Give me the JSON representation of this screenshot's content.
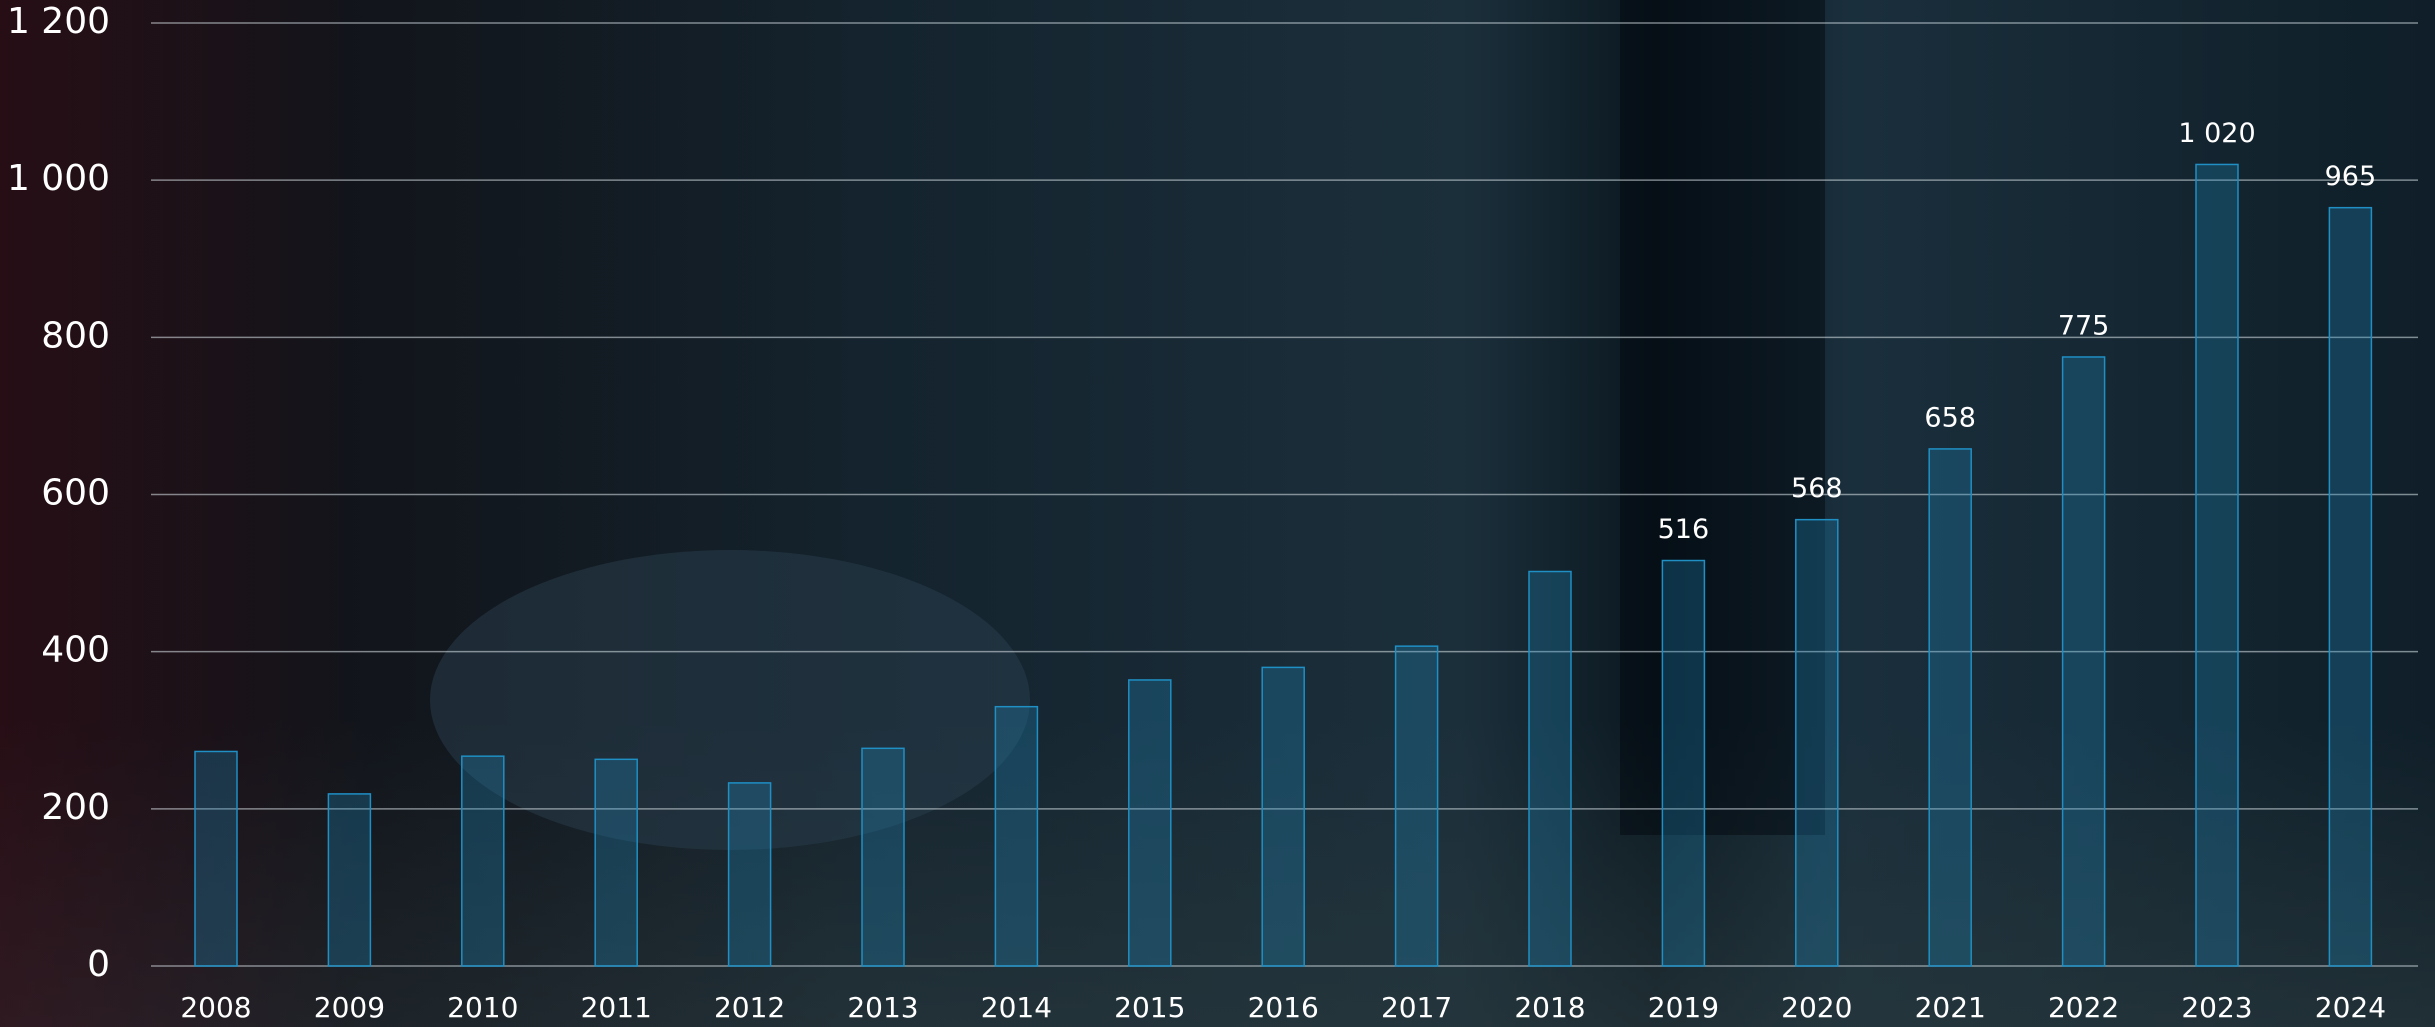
{
  "chart_data": {
    "type": "bar",
    "categories": [
      "2008",
      "2009",
      "2010",
      "2011",
      "2012",
      "2013",
      "2014",
      "2015",
      "2016",
      "2017",
      "2018",
      "2019",
      "2020",
      "2021",
      "2022",
      "2023",
      "2024"
    ],
    "values": [
      273,
      219,
      267,
      263,
      233,
      277,
      330,
      364,
      380,
      407,
      502,
      516,
      568,
      658,
      775,
      1020,
      965
    ],
    "value_labels": [
      null,
      null,
      null,
      null,
      null,
      null,
      null,
      null,
      null,
      null,
      null,
      "516",
      "568",
      "658",
      "775",
      "1 020",
      "965"
    ],
    "color": "#1f8fc4",
    "ylim": [
      0,
      1200
    ],
    "yticks": [
      0,
      200,
      400,
      600,
      800,
      {
        "value": 1000,
        "label": "1 000"
      },
      {
        "value": 1200,
        "label": "1 200"
      }
    ],
    "grid": true
  }
}
